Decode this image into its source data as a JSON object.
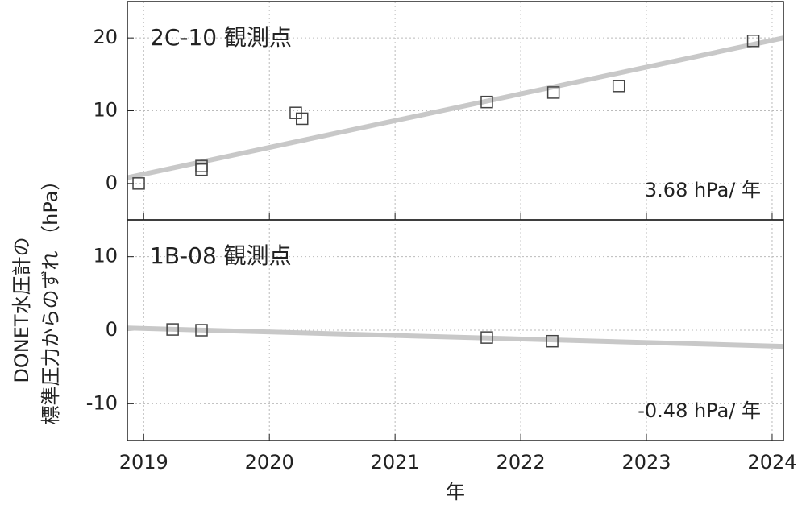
{
  "chart_data": [
    {
      "type": "scatter",
      "title": "2C-10 観測点",
      "annotation": "3.68 hPa/ 年",
      "xlim": [
        2018.87,
        2024.09
      ],
      "xticks": [
        2019,
        2020,
        2021,
        2022,
        2023,
        2024
      ],
      "ylim": [
        -5,
        25
      ],
      "yticks": [
        0,
        10,
        20
      ],
      "grid": true,
      "series": [
        {
          "style": "line",
          "color": "#c8c8c8",
          "x": [
            2018.87,
            2024.09
          ],
          "values": [
            0.8,
            20.0
          ]
        },
        {
          "style": "square",
          "color": "#444444",
          "x": [
            2018.96,
            2019.46,
            2019.46,
            2020.21,
            2020.26,
            2021.73,
            2022.26,
            2022.78,
            2023.85
          ],
          "values": [
            0,
            2.4,
            1.9,
            9.7,
            8.9,
            11.2,
            12.5,
            13.4,
            19.6
          ]
        }
      ]
    },
    {
      "type": "scatter",
      "title": "1B-08 観測点",
      "annotation": "-0.48 hPa/ 年",
      "xlim": [
        2018.87,
        2024.09
      ],
      "xticks": [
        2019,
        2020,
        2021,
        2022,
        2023,
        2024
      ],
      "ylim": [
        -15,
        15
      ],
      "yticks": [
        -10,
        0,
        10
      ],
      "grid": true,
      "series": [
        {
          "style": "line",
          "color": "#c8c8c8",
          "x": [
            2018.87,
            2024.09
          ],
          "values": [
            0.3,
            -2.2
          ]
        },
        {
          "style": "square",
          "color": "#444444",
          "x": [
            2019.23,
            2019.46,
            2021.73,
            2022.25
          ],
          "values": [
            0.1,
            0,
            -1.0,
            -1.5
          ]
        }
      ]
    }
  ],
  "y_label": [
    "DONET水圧計の",
    "標準圧力からのずれ （hPa）"
  ],
  "x_label": "年"
}
